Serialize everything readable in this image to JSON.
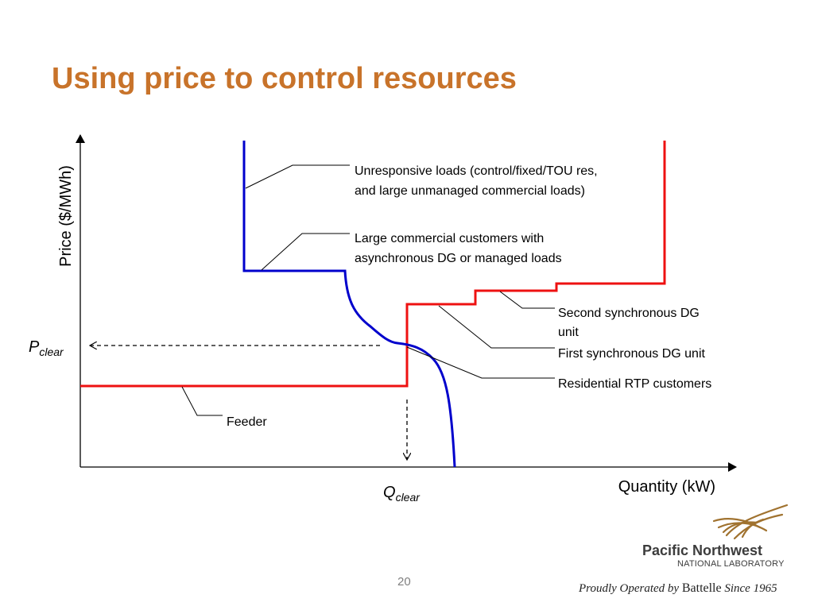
{
  "slide": {
    "title": "Using price to control resources",
    "page_number": "20"
  },
  "diagram": {
    "y_axis_label": "Price ($/MWh)",
    "x_axis_label": "Quantity (kW)",
    "p_clear": {
      "symbol": "P",
      "subscript": "clear"
    },
    "q_clear": {
      "symbol": "Q",
      "subscript": "clear"
    },
    "annotations": {
      "unresponsive": [
        "Unresponsive loads (control/fixed/TOU res,",
        "and large unmanaged commercial loads)"
      ],
      "large_commercial": [
        "Large commercial customers with",
        "asynchronous DG or managed loads"
      ],
      "second_dg": [
        "Second synchronous DG",
        "unit"
      ],
      "first_dg": "First synchronous DG unit",
      "residential": "Residential RTP customers",
      "feeder": "Feeder"
    },
    "colors": {
      "demand_curve": "#0000cc",
      "supply_curve": "#ee1111",
      "axes": "#000000",
      "leader_lines": "#000000"
    }
  },
  "footer": {
    "org_name": "Pacific Northwest",
    "org_sub": "NATIONAL LABORATORY",
    "tagline_prefix": "Proudly Operated by",
    "tagline_brand": "Battelle",
    "tagline_suffix": "Since 1965",
    "logo_color": "#a0722f"
  }
}
